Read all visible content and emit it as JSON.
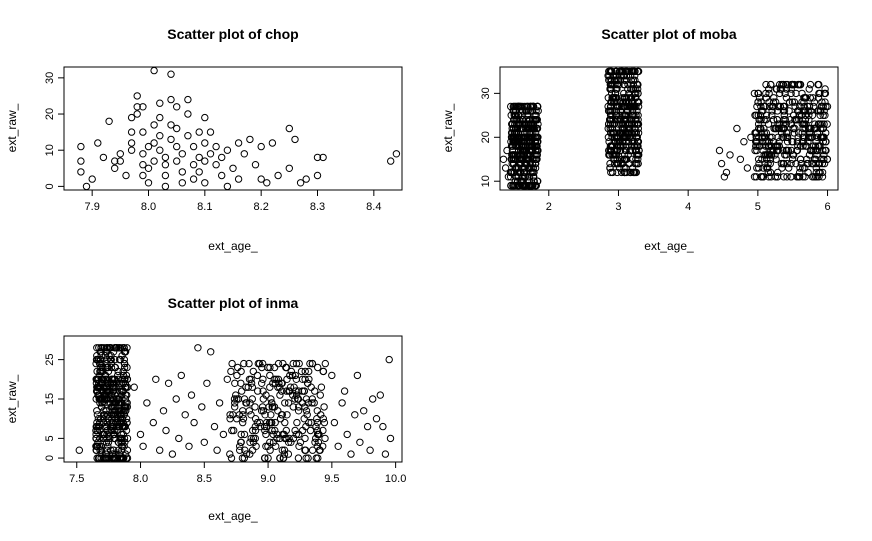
{
  "chart_data": [
    {
      "type": "scatter",
      "title": "Scatter plot of chop",
      "xlabel": "ext_age_",
      "ylabel": "ext_raw_",
      "xlim": [
        7.85,
        8.45
      ],
      "ylim": [
        -1,
        33
      ],
      "xticks": [
        7.9,
        8.0,
        8.1,
        8.2,
        8.3,
        8.4
      ],
      "xtick_labels": [
        "7.9",
        "8.0",
        "8.1",
        "8.2",
        "8.3",
        "8.4"
      ],
      "yticks": [
        0,
        10,
        20,
        30
      ],
      "ytick_labels": [
        "0",
        "10",
        "20",
        "30"
      ],
      "grid": false,
      "points": [
        [
          7.88,
          11
        ],
        [
          7.88,
          7
        ],
        [
          7.88,
          4
        ],
        [
          7.89,
          0
        ],
        [
          7.9,
          2
        ],
        [
          7.91,
          12
        ],
        [
          7.92,
          8
        ],
        [
          7.93,
          18
        ],
        [
          7.94,
          5
        ],
        [
          7.94,
          7
        ],
        [
          7.95,
          9
        ],
        [
          7.95,
          7
        ],
        [
          7.96,
          3
        ],
        [
          7.97,
          12
        ],
        [
          7.97,
          10
        ],
        [
          7.97,
          15
        ],
        [
          7.97,
          19
        ],
        [
          7.98,
          22
        ],
        [
          7.98,
          20
        ],
        [
          7.98,
          25
        ],
        [
          7.99,
          22
        ],
        [
          7.99,
          15
        ],
        [
          7.99,
          9
        ],
        [
          7.99,
          6
        ],
        [
          7.99,
          3
        ],
        [
          8.0,
          1
        ],
        [
          8.0,
          5
        ],
        [
          8.0,
          11
        ],
        [
          8.01,
          7
        ],
        [
          8.01,
          12
        ],
        [
          8.01,
          17
        ],
        [
          8.01,
          32
        ],
        [
          8.02,
          23
        ],
        [
          8.02,
          19
        ],
        [
          8.02,
          14
        ],
        [
          8.02,
          10
        ],
        [
          8.03,
          6
        ],
        [
          8.03,
          3
        ],
        [
          8.03,
          0
        ],
        [
          8.03,
          8
        ],
        [
          8.04,
          13
        ],
        [
          8.04,
          17
        ],
        [
          8.04,
          24
        ],
        [
          8.04,
          31
        ],
        [
          8.05,
          22
        ],
        [
          8.05,
          16
        ],
        [
          8.05,
          11
        ],
        [
          8.05,
          7
        ],
        [
          8.06,
          4
        ],
        [
          8.06,
          1
        ],
        [
          8.06,
          9
        ],
        [
          8.07,
          14
        ],
        [
          8.07,
          20
        ],
        [
          8.07,
          24
        ],
        [
          8.08,
          11
        ],
        [
          8.08,
          6
        ],
        [
          8.08,
          2
        ],
        [
          8.09,
          15
        ],
        [
          8.09,
          8
        ],
        [
          8.09,
          4
        ],
        [
          8.1,
          19
        ],
        [
          8.1,
          12
        ],
        [
          8.1,
          7
        ],
        [
          8.1,
          1
        ],
        [
          8.11,
          15
        ],
        [
          8.11,
          9
        ],
        [
          8.12,
          6
        ],
        [
          8.12,
          11
        ],
        [
          8.13,
          3
        ],
        [
          8.13,
          8
        ],
        [
          8.14,
          10
        ],
        [
          8.14,
          0
        ],
        [
          8.15,
          5
        ],
        [
          8.16,
          12
        ],
        [
          8.16,
          2
        ],
        [
          8.17,
          9
        ],
        [
          8.18,
          13
        ],
        [
          8.19,
          6
        ],
        [
          8.2,
          11
        ],
        [
          8.2,
          2
        ],
        [
          8.21,
          1
        ],
        [
          8.22,
          12
        ],
        [
          8.23,
          3
        ],
        [
          8.25,
          16
        ],
        [
          8.25,
          5
        ],
        [
          8.26,
          13
        ],
        [
          8.27,
          1
        ],
        [
          8.28,
          2
        ],
        [
          8.3,
          8
        ],
        [
          8.31,
          8
        ],
        [
          8.3,
          3
        ],
        [
          8.43,
          7
        ],
        [
          8.44,
          9
        ]
      ]
    },
    {
      "type": "scatter",
      "title": "Scatter plot of moba",
      "xlabel": "ext_age_",
      "ylabel": "ext_raw_",
      "xlim": [
        1.3,
        6.15
      ],
      "ylim": [
        8,
        36
      ],
      "xticks": [
        2,
        3,
        4,
        5,
        6
      ],
      "xtick_labels": [
        "2",
        "3",
        "4",
        "5",
        "6"
      ],
      "yticks": [
        10,
        20,
        30
      ],
      "ytick_labels": [
        "10",
        "20",
        "30"
      ],
      "grid": false,
      "clusters": [
        {
          "x_range": [
            1.45,
            1.85
          ],
          "y_range": [
            9,
            27
          ],
          "density": "high"
        },
        {
          "x_range": [
            2.85,
            3.3
          ],
          "y_range": [
            12,
            35
          ],
          "density": "high"
        },
        {
          "x_range": [
            4.95,
            6.0
          ],
          "y_range": [
            11,
            32
          ],
          "density": "high"
        }
      ],
      "points": [
        [
          1.35,
          15
        ],
        [
          1.38,
          13
        ],
        [
          1.4,
          17
        ],
        [
          1.42,
          11
        ],
        [
          4.45,
          17
        ],
        [
          4.48,
          14
        ],
        [
          4.52,
          11
        ],
        [
          4.55,
          12
        ],
        [
          4.6,
          16
        ],
        [
          4.7,
          22
        ],
        [
          4.75,
          15
        ],
        [
          4.8,
          19
        ],
        [
          4.85,
          13
        ],
        [
          4.9,
          20
        ]
      ]
    },
    {
      "type": "scatter",
      "title": "Scatter plot of inma",
      "xlabel": "ext_age_",
      "ylabel": "ext_raw_",
      "xlim": [
        7.4,
        10.05
      ],
      "ylim": [
        -1,
        31
      ],
      "xticks": [
        7.5,
        8.0,
        8.5,
        9.0,
        9.5,
        10.0
      ],
      "xtick_labels": [
        "7.5",
        "8.0",
        "8.5",
        "9.0",
        "9.5",
        "10.0"
      ],
      "yticks": [
        0,
        5,
        15,
        25
      ],
      "ytick_labels": [
        "0",
        "5",
        "15",
        "25"
      ],
      "grid": false,
      "clusters": [
        {
          "x_range": [
            7.65,
            7.9
          ],
          "y_range": [
            0,
            28
          ],
          "density": "high"
        },
        {
          "x_range": [
            8.7,
            9.45
          ],
          "y_range": [
            0,
            24
          ],
          "density": "medium"
        }
      ],
      "points": [
        [
          7.52,
          2
        ],
        [
          7.95,
          18
        ],
        [
          8.0,
          6
        ],
        [
          8.02,
          3
        ],
        [
          8.05,
          14
        ],
        [
          8.1,
          9
        ],
        [
          8.12,
          20
        ],
        [
          8.15,
          2
        ],
        [
          8.18,
          12
        ],
        [
          8.2,
          7
        ],
        [
          8.22,
          19
        ],
        [
          8.25,
          1
        ],
        [
          8.28,
          15
        ],
        [
          8.3,
          5
        ],
        [
          8.32,
          21
        ],
        [
          8.35,
          11
        ],
        [
          8.38,
          3
        ],
        [
          8.4,
          16
        ],
        [
          8.42,
          9
        ],
        [
          8.45,
          28
        ],
        [
          8.48,
          13
        ],
        [
          8.5,
          4
        ],
        [
          8.52,
          19
        ],
        [
          8.55,
          27
        ],
        [
          8.58,
          8
        ],
        [
          8.6,
          2
        ],
        [
          8.62,
          14
        ],
        [
          8.65,
          6
        ],
        [
          8.68,
          20
        ],
        [
          8.7,
          1
        ],
        [
          9.5,
          21
        ],
        [
          9.52,
          9
        ],
        [
          9.55,
          3
        ],
        [
          9.58,
          14
        ],
        [
          9.6,
          17
        ],
        [
          9.62,
          6
        ],
        [
          9.65,
          1
        ],
        [
          9.68,
          11
        ],
        [
          9.7,
          21
        ],
        [
          9.72,
          4
        ],
        [
          9.75,
          12
        ],
        [
          9.78,
          8
        ],
        [
          9.8,
          2
        ],
        [
          9.82,
          15
        ],
        [
          9.85,
          10
        ],
        [
          9.88,
          16
        ],
        [
          9.9,
          8
        ],
        [
          9.92,
          1
        ],
        [
          9.95,
          25
        ],
        [
          9.96,
          5
        ]
      ]
    }
  ]
}
